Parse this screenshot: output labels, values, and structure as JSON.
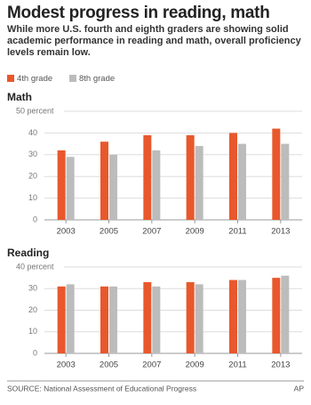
{
  "title": "Modest progress in reading, math",
  "subtitle": "While more U.S. fourth and eighth graders are showing solid academic performance in reading and math, overall proficiency levels remain low.",
  "chart_data": [
    {
      "type": "bar",
      "title": "Math",
      "categories": [
        "2003",
        "2005",
        "2007",
        "2009",
        "2011",
        "2013"
      ],
      "series": [
        {
          "name": "4th grade",
          "color": "#e8582c",
          "values": [
            32,
            36,
            39,
            39,
            40,
            42
          ]
        },
        {
          "name": "8th grade",
          "color": "#bcbcbc",
          "values": [
            29,
            30,
            32,
            34,
            35,
            35
          ]
        }
      ],
      "ylim": [
        0,
        50
      ],
      "yticks": [
        0,
        10,
        20,
        30,
        40,
        {
          "value": 50,
          "label": "50 percent"
        }
      ],
      "grid": true
    },
    {
      "type": "bar",
      "title": "Reading",
      "categories": [
        "2003",
        "2005",
        "2007",
        "2009",
        "2011",
        "2013"
      ],
      "series": [
        {
          "color": "#e8582c",
          "values": [
            31,
            31,
            33,
            33,
            34,
            35
          ]
        },
        {
          "color": "#bcbcbc",
          "values": [
            32,
            31,
            31,
            32,
            34,
            36
          ]
        }
      ],
      "ylim": [
        0,
        40
      ],
      "yticks": [
        0,
        10,
        20,
        30,
        {
          "value": 40,
          "label": "40 percent"
        }
      ],
      "grid": true
    }
  ],
  "source": "SOURCE: National Assessment of Educational Progress",
  "credit": "AP"
}
